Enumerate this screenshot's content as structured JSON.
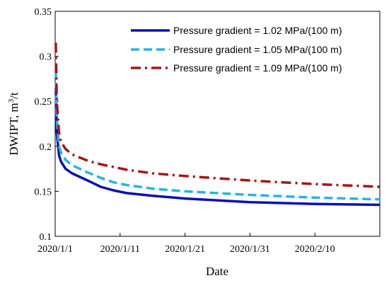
{
  "chart_data": {
    "type": "line",
    "title": "",
    "xlabel": "Date",
    "ylabel_main": "DWIPT, m",
    "ylabel_sup": "3",
    "ylabel_tail": "/t",
    "x_start_date": "2020/1/1",
    "xlim": [
      "2020/1/1",
      "2020/2/20"
    ],
    "x_ticks": [
      "2020/1/1",
      "2020/1/11",
      "2020/1/21",
      "2020/1/31",
      "2020/2/10"
    ],
    "ylim": [
      0.1,
      0.35
    ],
    "y_ticks": [
      "0.1",
      "0.15",
      "0.2",
      "0.25",
      "0.3",
      "0.35"
    ],
    "grid": false,
    "legend_position": "top-right",
    "series": [
      {
        "name": "Pressure gradient = 1.02 MPa/(100 m)",
        "color": "#0a10b4",
        "dash": "solid",
        "x": [
          "2020/1/1",
          "2020/1/1",
          "2020/1/2",
          "2020/1/2",
          "2020/1/3",
          "2020/1/4",
          "2020/1/6",
          "2020/1/8",
          "2020/1/10",
          "2020/1/12",
          "2020/1/16",
          "2020/1/21",
          "2020/1/31",
          "2020/2/10",
          "2020/2/20"
        ],
        "y": [
          0.265,
          0.215,
          0.19,
          0.183,
          0.175,
          0.17,
          0.162,
          0.155,
          0.151,
          0.148,
          0.145,
          0.142,
          0.138,
          0.136,
          0.135
        ]
      },
      {
        "name": "Pressure gradient = 1.05 MPa/(100 m)",
        "color": "#26b4e6",
        "dash": "dashed",
        "x": [
          "2020/1/1",
          "2020/1/1",
          "2020/1/2",
          "2020/1/2",
          "2020/1/3",
          "2020/1/4",
          "2020/1/6",
          "2020/1/8",
          "2020/1/10",
          "2020/1/12",
          "2020/1/16",
          "2020/1/21",
          "2020/1/31",
          "2020/2/10",
          "2020/2/20"
        ],
        "y": [
          0.285,
          0.23,
          0.2,
          0.193,
          0.185,
          0.179,
          0.171,
          0.165,
          0.16,
          0.157,
          0.153,
          0.15,
          0.146,
          0.143,
          0.141
        ]
      },
      {
        "name": "Pressure gradient = 1.09 MPa/(100 m)",
        "color": "#a81414",
        "dash": "dashdot",
        "x": [
          "2020/1/1",
          "2020/1/1",
          "2020/1/2",
          "2020/1/2",
          "2020/1/3",
          "2020/1/4",
          "2020/1/6",
          "2020/1/8",
          "2020/1/10",
          "2020/1/12",
          "2020/1/16",
          "2020/1/21",
          "2020/1/31",
          "2020/2/10",
          "2020/2/20"
        ],
        "y": [
          0.315,
          0.25,
          0.215,
          0.205,
          0.197,
          0.191,
          0.184,
          0.18,
          0.177,
          0.174,
          0.17,
          0.167,
          0.162,
          0.158,
          0.155
        ]
      }
    ]
  }
}
